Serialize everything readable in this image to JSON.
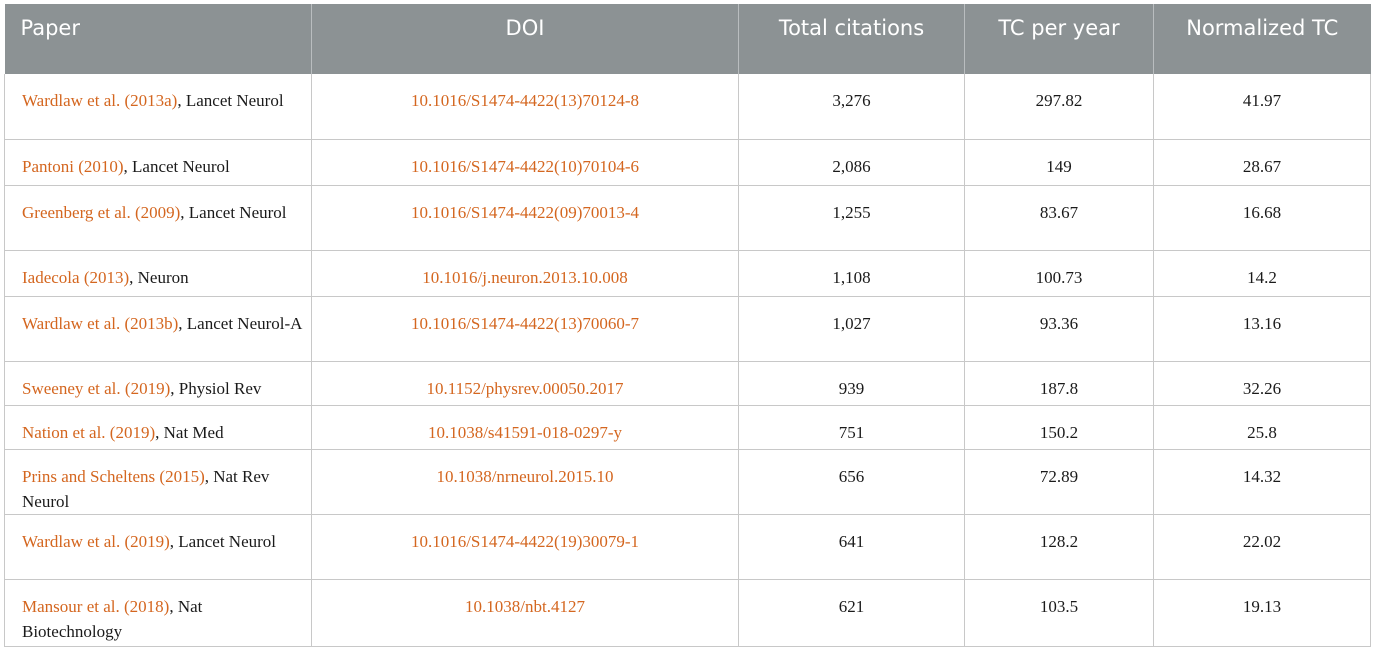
{
  "table": {
    "headers": {
      "paper": "Paper",
      "doi": "DOI",
      "total_citations": "Total citations",
      "tc_per_year": "TC per year",
      "normalized_tc": "Normalized TC"
    },
    "rows": [
      {
        "ref": "Wardlaw et al. (2013a)",
        "journal": ", Lancet Neurol",
        "doi": "10.1016/S1474-4422(13)70124-8",
        "total_citations": "3,276",
        "tc_per_year": "297.82",
        "normalized_tc": "41.97"
      },
      {
        "ref": "Pantoni (2010)",
        "journal": ", Lancet Neurol",
        "doi": "10.1016/S1474-4422(10)70104-6",
        "total_citations": "2,086",
        "tc_per_year": "149",
        "normalized_tc": "28.67"
      },
      {
        "ref": "Greenberg et al. (2009)",
        "journal": ", Lancet Neurol",
        "doi": "10.1016/S1474-4422(09)70013-4",
        "total_citations": "1,255",
        "tc_per_year": "83.67",
        "normalized_tc": "16.68"
      },
      {
        "ref": "Iadecola (2013)",
        "journal": ", Neuron",
        "doi": "10.1016/j.neuron.2013.10.008",
        "total_citations": "1,108",
        "tc_per_year": "100.73",
        "normalized_tc": "14.2"
      },
      {
        "ref": "Wardlaw et al. (2013b)",
        "journal": ", Lancet Neurol-A",
        "doi": "10.1016/S1474-4422(13)70060-7",
        "total_citations": "1,027",
        "tc_per_year": "93.36",
        "normalized_tc": "13.16"
      },
      {
        "ref": "Sweeney et al. (2019)",
        "journal": ", Physiol Rev",
        "doi": "10.1152/physrev.00050.2017",
        "total_citations": "939",
        "tc_per_year": "187.8",
        "normalized_tc": "32.26"
      },
      {
        "ref": "Nation et al. (2019)",
        "journal": ", Nat Med",
        "doi": "10.1038/s41591-018-0297-y",
        "total_citations": "751",
        "tc_per_year": "150.2",
        "normalized_tc": "25.8"
      },
      {
        "ref": "Prins and Scheltens (2015)",
        "journal": ", Nat Rev Neurol",
        "doi": "10.1038/nrneurol.2015.10",
        "total_citations": "656",
        "tc_per_year": "72.89",
        "normalized_tc": "14.32"
      },
      {
        "ref": "Wardlaw et al. (2019)",
        "journal": ", Lancet Neurol",
        "doi": "10.1016/S1474-4422(19)30079-1",
        "total_citations": "641",
        "tc_per_year": "128.2",
        "normalized_tc": "22.02"
      },
      {
        "ref": "Mansour et al. (2018)",
        "journal": ", Nat Biotechnology",
        "doi": "10.1038/nbt.4127",
        "total_citations": "621",
        "tc_per_year": "103.5",
        "normalized_tc": "19.13"
      }
    ]
  },
  "colors": {
    "header_bg": "#8c9294",
    "link": "#d4661f",
    "border": "#c8c8c8"
  }
}
